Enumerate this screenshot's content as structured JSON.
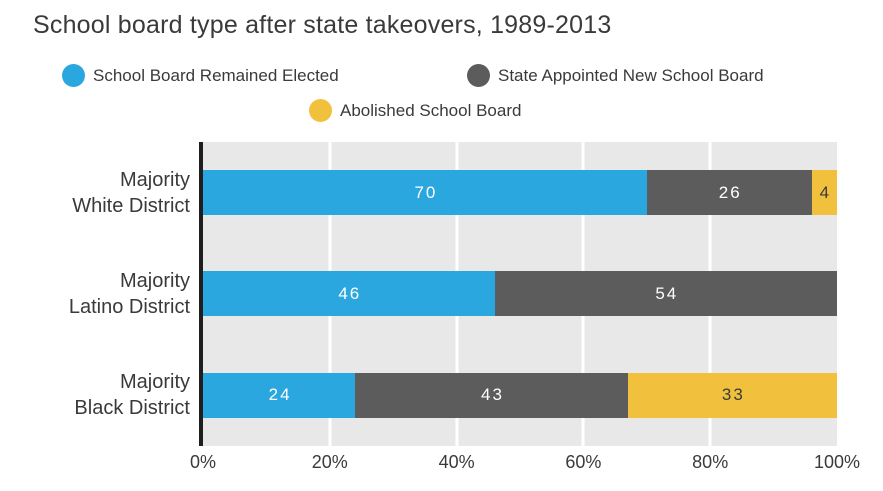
{
  "chart_data": {
    "type": "bar",
    "orientation": "horizontal",
    "stacked": true,
    "title": "School board type after state takeovers, 1989-2013",
    "categories": [
      [
        "Majority",
        "White District"
      ],
      [
        "Majority",
        "Latino District"
      ],
      [
        "Majority",
        "Black District"
      ]
    ],
    "series": [
      {
        "name": "School Board Remained Elected",
        "color": "#2BA7DF",
        "value_text_color": "#FFFFFF",
        "values": [
          70,
          46,
          24
        ]
      },
      {
        "name": "State Appointed New School Board",
        "color": "#5C5C5C",
        "value_text_color": "#FFFFFF",
        "values": [
          26,
          54,
          43
        ]
      },
      {
        "name": "Abolished School Board",
        "color": "#F1C13E",
        "value_text_color": "#3A3A3A",
        "values": [
          4,
          0,
          33
        ]
      }
    ],
    "x_ticks": [
      {
        "label": "0%",
        "value": 0
      },
      {
        "label": "20%",
        "value": 20
      },
      {
        "label": "40%",
        "value": 40
      },
      {
        "label": "60%",
        "value": 60
      },
      {
        "label": "80%",
        "value": 80
      },
      {
        "label": "100%",
        "value": 100
      }
    ],
    "xlim": [
      0,
      100
    ],
    "legend_position": "top",
    "plot_background": "#E8E8E8",
    "gridlines": {
      "color": "#FFFFFF",
      "at": [
        20,
        40,
        60,
        80
      ]
    },
    "axis_line_color": "#1E1E1E"
  }
}
